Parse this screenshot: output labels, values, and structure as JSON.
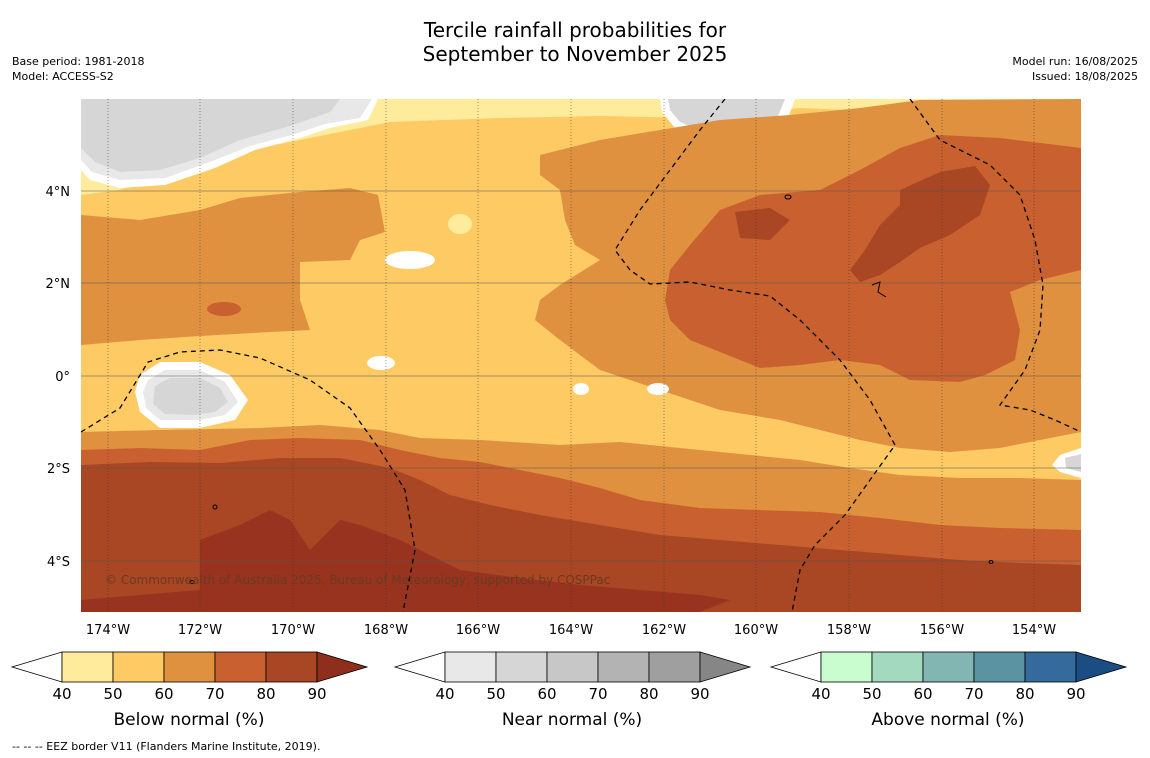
{
  "title": {
    "line1": "Tercile rainfall probabilities for",
    "line2": "September to November 2025"
  },
  "meta": {
    "base_period": "Base period: 1981-2018",
    "model": "Model: ACCESS-S2",
    "model_run": "Model run: 16/08/2025",
    "issued": "Issued: 18/08/2025"
  },
  "copyright": "© Commonwealth of Australia 2025, Bureau of Meteorology, supported by COSPPac",
  "footer": "--  --  -- EEZ border V11 (Flanders Marine Institute, 2019).",
  "axes": {
    "lat_labels": [
      "4°N",
      "2°N",
      "0°",
      "2°S",
      "4°S"
    ],
    "lon_labels": [
      "174°W",
      "172°W",
      "170°W",
      "168°W",
      "166°W",
      "164°W",
      "162°W",
      "160°W",
      "158°W",
      "156°W",
      "154°W"
    ]
  },
  "colorbars": [
    {
      "title": "Below normal (%)",
      "ticks": [
        "40",
        "50",
        "60",
        "70",
        "80",
        "90"
      ],
      "colors": [
        "#ffffff",
        "#ffeb9c",
        "#fdca64",
        "#df9140",
        "#c8612f",
        "#a94624",
        "#8e2e1c"
      ]
    },
    {
      "title": "Near normal (%)",
      "ticks": [
        "40",
        "50",
        "60",
        "70",
        "80",
        "90"
      ],
      "colors": [
        "#ffffff",
        "#e8e8e8",
        "#d6d6d6",
        "#c7c7c7",
        "#b3b3b3",
        "#9f9f9f",
        "#868686"
      ]
    },
    {
      "title": "Above normal (%)",
      "ticks": [
        "40",
        "50",
        "60",
        "70",
        "80",
        "90"
      ],
      "colors": [
        "#ffffff",
        "#c9fdd0",
        "#a3d9bf",
        "#82b6b3",
        "#5b93a3",
        "#346a9c",
        "#1b4c82"
      ]
    }
  ],
  "map_colors": {
    "b50": "#ffeb9c",
    "b60": "#fdca64",
    "b70": "#df9140",
    "b80": "#c8612f",
    "b90": "#a94624",
    "b100": "#983320",
    "near": "#d6d6d6",
    "near_light": "#e8e8e8"
  }
}
